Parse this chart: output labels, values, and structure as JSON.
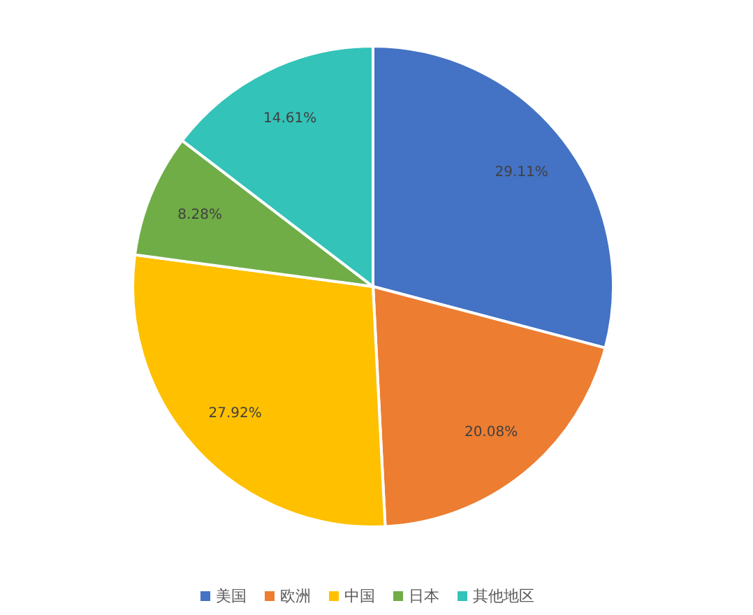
{
  "chart_data": {
    "type": "pie",
    "categories": [
      "美国",
      "欧洲",
      "中国",
      "日本",
      "其他地区"
    ],
    "values": [
      29.11,
      20.08,
      27.92,
      8.28,
      14.61
    ],
    "colors": [
      "#4472c4",
      "#ed7d31",
      "#ffc000",
      "#70ad47",
      "#33c3b8"
    ],
    "value_labels": [
      "29.11%",
      "20.08%",
      "27.92%",
      "8.28%",
      "14.61%"
    ],
    "legend": "bottom"
  }
}
